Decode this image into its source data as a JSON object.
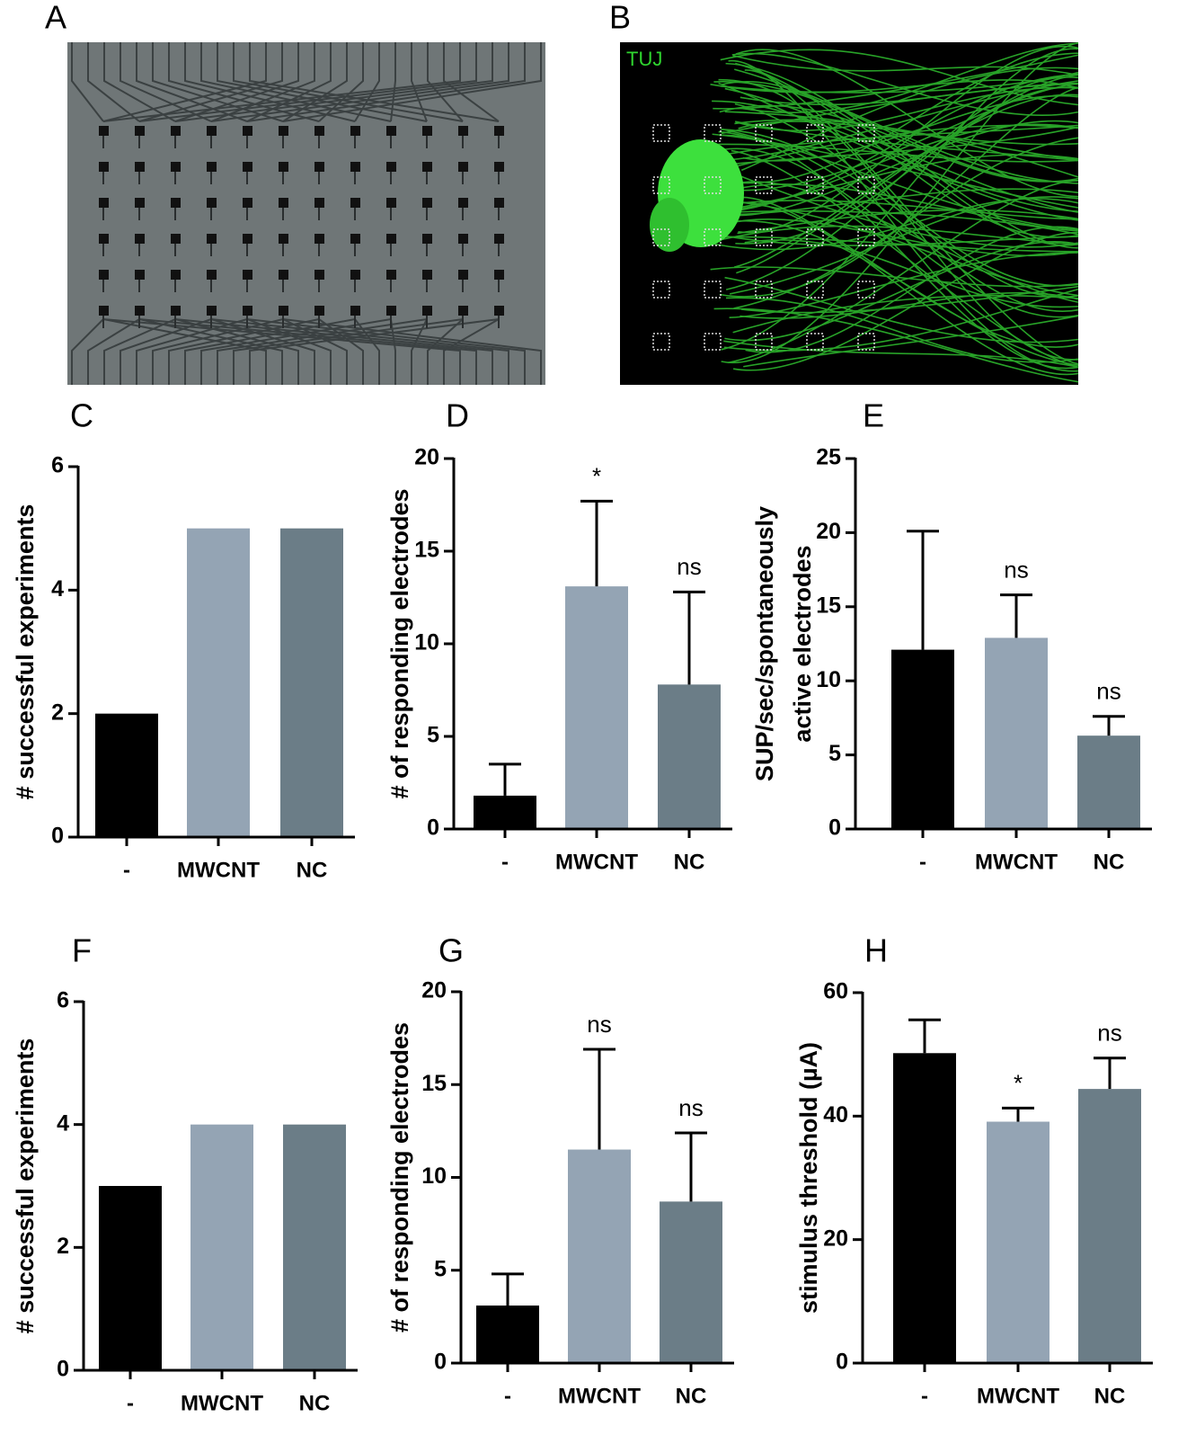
{
  "images": [
    {
      "panel_label": "A"
    },
    {
      "panel_label": "B",
      "stain": "TUJ"
    }
  ],
  "chart_data": [
    {
      "type": "bar",
      "panel_label": "C",
      "ylabel": "# successful experiments",
      "categories": [
        "-",
        "MWCNT",
        "NC"
      ],
      "values": [
        2,
        5,
        5
      ],
      "colors": [
        "#000000",
        "#94a4b4",
        "#6b7d87"
      ],
      "ylim": [
        0,
        6
      ],
      "yticks": [
        0,
        2,
        4,
        6
      ]
    },
    {
      "type": "bar",
      "panel_label": "D",
      "ylabel": "# of responding electrodes",
      "categories": [
        "-",
        "MWCNT",
        "NC"
      ],
      "values": [
        1.8,
        13.1,
        7.8
      ],
      "errors": [
        1.7,
        4.6,
        5.0
      ],
      "annotations": [
        null,
        "*",
        "ns"
      ],
      "colors": [
        "#000000",
        "#94a4b4",
        "#6b7d87"
      ],
      "ylim": [
        0,
        20
      ],
      "yticks": [
        0,
        5,
        10,
        15,
        20
      ]
    },
    {
      "type": "bar",
      "panel_label": "E",
      "ylabel": [
        "SUP/sec/spontaneously",
        "active electrodes"
      ],
      "categories": [
        "-",
        "MWCNT",
        "NC"
      ],
      "values": [
        12.1,
        12.9,
        6.3
      ],
      "errors": [
        8.0,
        2.9,
        1.3
      ],
      "annotations": [
        null,
        "ns",
        "ns"
      ],
      "colors": [
        "#000000",
        "#94a4b4",
        "#6b7d87"
      ],
      "ylim": [
        0,
        25
      ],
      "yticks": [
        0,
        5,
        10,
        15,
        20,
        25
      ]
    },
    {
      "type": "bar",
      "panel_label": "F",
      "ylabel": "# successful experiments",
      "categories": [
        "-",
        "MWCNT",
        "NC"
      ],
      "values": [
        3,
        4,
        4
      ],
      "colors": [
        "#000000",
        "#94a4b4",
        "#6b7d87"
      ],
      "ylim": [
        0,
        6
      ],
      "yticks": [
        0,
        2,
        4,
        6
      ]
    },
    {
      "type": "bar",
      "panel_label": "G",
      "ylabel": "# of responding electrodes",
      "categories": [
        "-",
        "MWCNT",
        "NC"
      ],
      "values": [
        3.1,
        11.5,
        8.7
      ],
      "errors": [
        1.7,
        5.4,
        3.7
      ],
      "annotations": [
        null,
        "ns",
        "ns"
      ],
      "colors": [
        "#000000",
        "#94a4b4",
        "#6b7d87"
      ],
      "ylim": [
        0,
        20
      ],
      "yticks": [
        0,
        5,
        10,
        15,
        20
      ]
    },
    {
      "type": "bar",
      "panel_label": "H",
      "ylabel": "stimulus threshold (µA)",
      "categories": [
        "-",
        "MWCNT",
        "NC"
      ],
      "values": [
        50.2,
        39.1,
        44.4
      ],
      "errors": [
        5.4,
        2.2,
        5.0
      ],
      "annotations": [
        null,
        "*",
        "ns"
      ],
      "colors": [
        "#000000",
        "#94a4b4",
        "#6b7d87"
      ],
      "ylim": [
        0,
        60
      ],
      "yticks": [
        0,
        20,
        40,
        60
      ]
    }
  ]
}
